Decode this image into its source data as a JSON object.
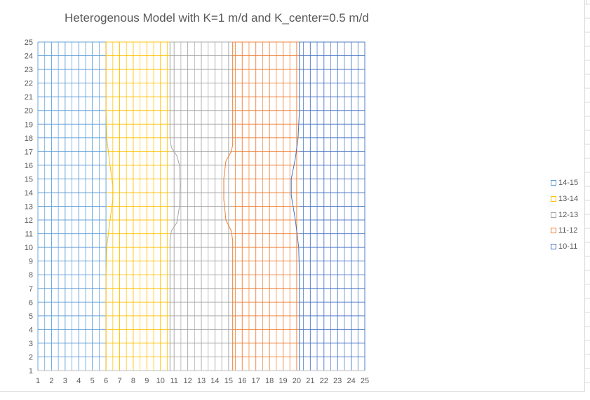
{
  "chart_data": {
    "type": "surface-contour",
    "title": "Heterogenous Model with K=1 m/d and K_center=0.5 m/d",
    "x_ticks": [
      "1",
      "2",
      "3",
      "4",
      "5",
      "6",
      "7",
      "8",
      "9",
      "10",
      "11",
      "12",
      "13",
      "14",
      "15",
      "16",
      "17",
      "18",
      "19",
      "20",
      "21",
      "22",
      "23",
      "24",
      "25"
    ],
    "y_ticks": [
      "1",
      "2",
      "3",
      "4",
      "5",
      "6",
      "7",
      "8",
      "9",
      "10",
      "11",
      "12",
      "13",
      "14",
      "15",
      "16",
      "17",
      "18",
      "19",
      "20",
      "21",
      "22",
      "23",
      "24",
      "25"
    ],
    "xlim": [
      1,
      25
    ],
    "ylim": [
      1,
      25
    ],
    "grid": true,
    "legend_position": "right",
    "series": [
      {
        "name": "14-15",
        "color": "#5b9bd5",
        "x_range": [
          1,
          6.0
        ]
      },
      {
        "name": "13-14",
        "color": "#ffc000",
        "x_range": [
          6.0,
          10.7
        ]
      },
      {
        "name": "12-13",
        "color": "#a5a5a5",
        "x_range": [
          10.7,
          15.3
        ]
      },
      {
        "name": "11-12",
        "color": "#ed7d31",
        "x_range": [
          15.3,
          20.2
        ]
      },
      {
        "name": "10-11",
        "color": "#4472c4",
        "x_range": [
          20.2,
          25
        ]
      }
    ],
    "contours": [
      {
        "between": [
          "14-15",
          "13-14"
        ],
        "points": [
          [
            6.0,
            1
          ],
          [
            6.0,
            8
          ],
          [
            6.05,
            10
          ],
          [
            6.3,
            12
          ],
          [
            6.5,
            13.5
          ],
          [
            6.5,
            14.5
          ],
          [
            6.3,
            16
          ],
          [
            6.05,
            18
          ],
          [
            6.0,
            20
          ],
          [
            6.0,
            25
          ]
        ]
      },
      {
        "between": [
          "13-14",
          "12-13"
        ],
        "points": [
          [
            10.7,
            1
          ],
          [
            10.7,
            10.5
          ],
          [
            10.8,
            11.2
          ],
          [
            11.2,
            11.8
          ],
          [
            11.4,
            13
          ],
          [
            11.45,
            14.5
          ],
          [
            11.4,
            16
          ],
          [
            11.2,
            16.7
          ],
          [
            10.8,
            17.3
          ],
          [
            10.7,
            18
          ],
          [
            10.7,
            25
          ]
        ]
      },
      {
        "between": [
          "12-13",
          "11-12"
        ],
        "points": [
          [
            15.3,
            1
          ],
          [
            15.3,
            10.5
          ],
          [
            15.2,
            11.2
          ],
          [
            14.8,
            12
          ],
          [
            14.65,
            13.5
          ],
          [
            14.65,
            15
          ],
          [
            14.8,
            16.3
          ],
          [
            15.2,
            17
          ],
          [
            15.3,
            17.5
          ],
          [
            15.3,
            25
          ]
        ]
      },
      {
        "between": [
          "11-12",
          "10-11"
        ],
        "points": [
          [
            20.2,
            1
          ],
          [
            20.2,
            8
          ],
          [
            20.15,
            10
          ],
          [
            19.9,
            12
          ],
          [
            19.6,
            13.8
          ],
          [
            19.6,
            15
          ],
          [
            19.9,
            16.5
          ],
          [
            20.1,
            18
          ],
          [
            20.2,
            20
          ],
          [
            20.2,
            25
          ]
        ]
      }
    ]
  }
}
